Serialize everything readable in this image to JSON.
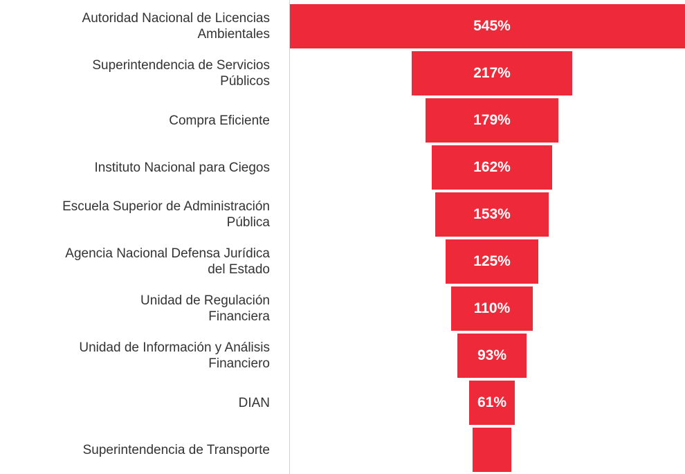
{
  "chart_data": {
    "type": "funnel",
    "color": "#ee2a3a",
    "categories": [
      "Autoridad Nacional de Licencias\nAmbientales",
      "Superintendencia de Servicios\nPúblicos",
      "Compra Eficiente",
      "Instituto Nacional para Ciegos",
      "Escuela Superior de Administración\nPública",
      "Agencia Nacional Defensa Jurídica\ndel Estado",
      "Unidad de Regulación\nFinanciera",
      "Unidad de Información y Análisis\nFinanciero",
      "DIAN",
      "Superintendencia de Transporte"
    ],
    "values": [
      545,
      217,
      179,
      162,
      153,
      125,
      110,
      93,
      61,
      53
    ],
    "value_labels": [
      "545%",
      "217%",
      "179%",
      "162%",
      "153%",
      "125%",
      "110%",
      "93%",
      "61%",
      null
    ]
  }
}
